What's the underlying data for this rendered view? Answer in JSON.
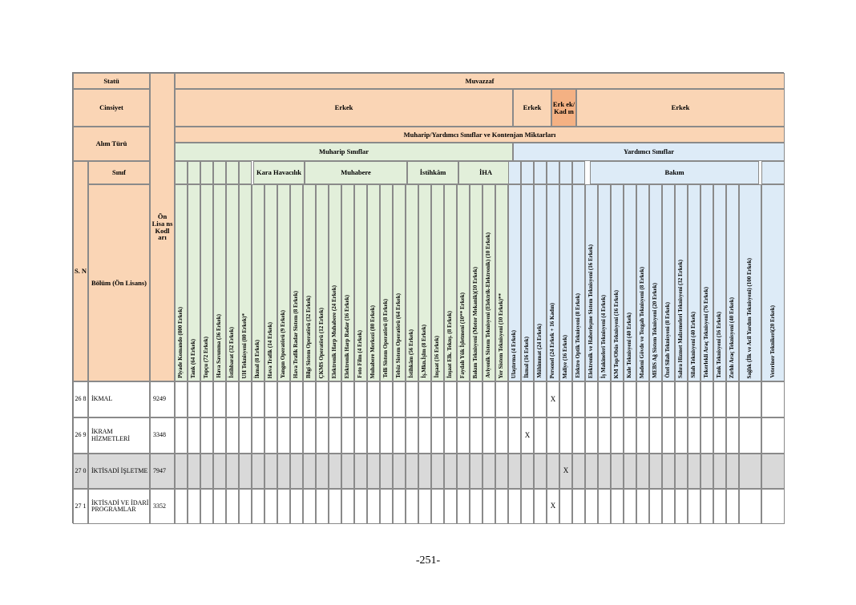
{
  "header": {
    "statu": "Statü",
    "muvazzaf": "Muvazzaf",
    "cinsiyet": "Cinsiyet",
    "erkek1": "Erkek",
    "erkek2": "Erkek",
    "erkek_kadin": "Erk ek/ Kad ın",
    "erkek3": "Erkek",
    "alim_turu": "Alım Türü",
    "kontenjan": "Muharip/Yardımcı Sınıflar ve Kontenjan Miktarları",
    "muharip": "Muharip Sınıflar",
    "yardimci": "Yardımcı Sınıflar",
    "sn": "S. N",
    "sinif": "Sınıf",
    "bolum": "Bölüm (Ön Lisans)",
    "onlisans": "Ön Lisa ns Kodl arı",
    "kara_havacilik": "Kara Havacılık",
    "muhabere": "Muhabere",
    "istihkam": "İstihkâm",
    "iha": "İHA",
    "bakim": "Bakım"
  },
  "columns": [
    "Piyade Komando (800 Erkek)",
    "Tank (64 Erkek)",
    "Topçu (72 Erkek)",
    "Hava Savunma (36 Erkek)",
    "İstihbarat (32 Erkek)",
    "UH Teknisyeni (80 Erkek)*",
    "İkmal (8 Erkek)",
    "Hava Trafik (14 Erkek)",
    "Yangın Operatörü (9 Erkek)",
    "Hava Trafik Radar Sistem (8 Erkek)",
    "Bilgi Sistem Operatörü (32 Erkek)",
    "ÇKMS Operatörü (12 Erkek)",
    "Elektronik Harp Muhabere (24 Erkek)",
    "Elektronik Harp Radar (16 Erkek)",
    "Foto Film (4 Erkek)",
    "Muhabere Merkezi (80 Erkek)",
    "Telli Sistem Operatörü (8 Erkek)",
    "Telsiz Sistem Operatörü (64 Erkek)",
    "İstihkâm (56 Erkek)",
    "İş.Mkn.İşlm (8 Erkek)",
    "İnşaat (16 Erkek)",
    "İnşaat Elk. Teknş. (8 Erkek)",
    "Faydalı Yük İşletmeni (10** Erkek)",
    "Bakım Teknisyeni (Motor Mekanik)(10 Erkek)",
    "Aviyonik Sistem Teknisyeni (Elektrik-Elektronik) (10 Erkek)",
    "Yer Sistem Teknisyeni (10 Erkek)**",
    "Ulaştırma (4 Erkek)",
    "İkmal (16 Erkek)",
    "Mühimmat (24 Erkek)",
    "Personel (24 Erkek + 16 Kadın)",
    "Maliye (16 Erkek)",
    "Elektro Optik Teknisyeni (8 Erkek)",
    "Elektronik ve Haberleşme Sistem Teknisyeni (16 Erkek)",
    "İş Makineleri Teknisyeni (4 Erkek)",
    "KM Top/Obüs Teknisyeni (16 Erkek)",
    "Kule Teknisyeni (40 Erkek)",
    "Madeni Gövde ve Tezgah Teknisyeni (8 Erkek)",
    "MEBS Ağ Sistem Teknisyeni (20 Erkek)",
    "Özel Silah Teknisyeni (8 Erkek)",
    "Sahra Hizmet Malzemeleri Teknisyeni (32 Erkek)",
    "Silah Teknisyeni (40 Erkek)",
    "Tekerlekli Araç Teknisyeni (76 Erkek)",
    "Tank Teknisyeni (16 Erkek)",
    "Zırhlı Araç Teknisyeni (40 Erkek)",
    "Sağlık (İlk ve Acil Yardım Teknisyeni) (100 Erkek)",
    "Veteriner Teknikeri(20 Erkek)"
  ],
  "rows": [
    {
      "sn": "26 8",
      "bolum": "İKMAL",
      "kod": "9249",
      "mark": "X",
      "mark_col": 29,
      "shade": false
    },
    {
      "sn": "26 9",
      "bolum": "İKRAM HİZMETLERİ",
      "kod": "3348",
      "mark": "X",
      "mark_col": 27,
      "shade": false
    },
    {
      "sn": "27 0",
      "bolum": "İKTİSADİ İŞLETME",
      "kod": "7947",
      "mark": "X",
      "mark_col": 30,
      "shade": true
    },
    {
      "sn": "27 1",
      "bolum": "İKTİSADİ VE İDARİ PROGRAMLAR",
      "kod": "3352",
      "mark": "X",
      "mark_col": 29,
      "shade": false
    }
  ],
  "page_number": "-251-"
}
